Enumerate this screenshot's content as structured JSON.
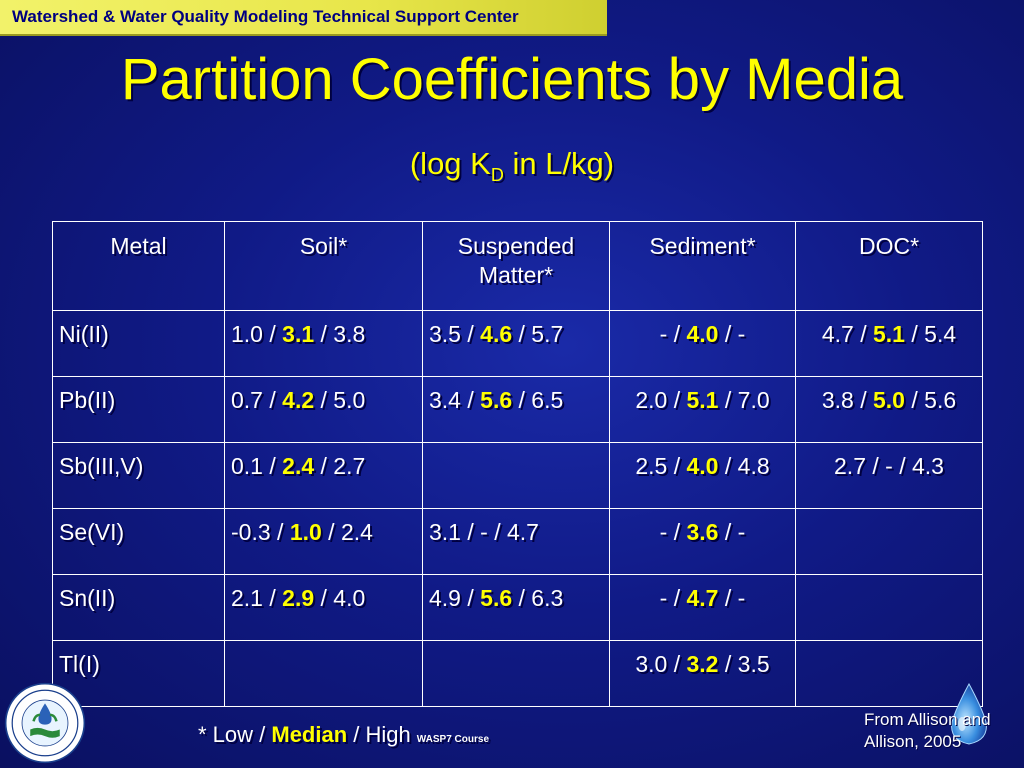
{
  "header": {
    "org": "Watershed & Water Quality Modeling Technical Support Center"
  },
  "title": "Partition Coefficients by Media",
  "subtitle": {
    "pre": "(log K",
    "sub": "D",
    "post": " in L/kg)"
  },
  "table": {
    "headers": [
      "Metal",
      "Soil*",
      "Suspended Matter*",
      "Sediment*",
      "DOC*"
    ],
    "rows": [
      {
        "metal": "Ni(II)",
        "cells": [
          {
            "pre": "1.0 / ",
            "med": "3.1",
            "post": " / 3.8"
          },
          {
            "pre": "3.5 / ",
            "med": "4.6",
            "post": " / 5.7"
          },
          {
            "pre": "- / ",
            "med": "4.0",
            "post": " / -"
          },
          {
            "pre": "4.7 / ",
            "med": "5.1",
            "post": " / 5.4"
          }
        ]
      },
      {
        "metal": "Pb(II)",
        "cells": [
          {
            "pre": "0.7 / ",
            "med": "4.2",
            "post": " / 5.0"
          },
          {
            "pre": "3.4 / ",
            "med": "5.6",
            "post": " / 6.5"
          },
          {
            "pre": "2.0 / ",
            "med": "5.1",
            "post": " / 7.0"
          },
          {
            "pre": "3.8 / ",
            "med": "5.0",
            "post": " / 5.6"
          }
        ]
      },
      {
        "metal": "Sb(III,V)",
        "cells": [
          {
            "pre": "0.1 / ",
            "med": "2.4",
            "post": " / 2.7"
          },
          {
            "pre": "",
            "med": "",
            "post": ""
          },
          {
            "pre": "2.5 / ",
            "med": "4.0",
            "post": " / 4.8"
          },
          {
            "pre": "2.7 / - / 4.3",
            "med": "",
            "post": ""
          }
        ]
      },
      {
        "metal": "Se(VI)",
        "cells": [
          {
            "pre": "-0.3 / ",
            "med": "1.0",
            "post": " / 2.4"
          },
          {
            "pre": "3.1 / - / 4.7",
            "med": "",
            "post": ""
          },
          {
            "pre": "- / ",
            "med": "3.6",
            "post": " / -"
          },
          {
            "pre": "",
            "med": "",
            "post": ""
          }
        ]
      },
      {
        "metal": "Sn(II)",
        "cells": [
          {
            "pre": "2.1 / ",
            "med": "2.9",
            "post": " / 4.0"
          },
          {
            "pre": "4.9 / ",
            "med": "5.6",
            "post": " / 6.3"
          },
          {
            "pre": "- / ",
            "med": "4.7",
            "post": " / -"
          },
          {
            "pre": "",
            "med": "",
            "post": ""
          }
        ]
      },
      {
        "metal": "Tl(I)",
        "cells": [
          {
            "pre": "",
            "med": "",
            "post": ""
          },
          {
            "pre": "",
            "med": "",
            "post": ""
          },
          {
            "pre": "3.0 / ",
            "med": "3.2",
            "post": " / 3.5"
          },
          {
            "pre": "",
            "med": "",
            "post": ""
          }
        ]
      }
    ]
  },
  "footnote": {
    "low": "* Low / ",
    "median": "Median",
    "high": " / High",
    "course": "WASP7 Course"
  },
  "source": {
    "line1": "From Allison and",
    "line2": "Allison, 2005"
  },
  "logos": {
    "epa_seal": "epa-seal-icon",
    "seal_text_top": "UNITED STATES",
    "seal_text_bottom": "ENVIRONMENTAL PROTECTION AGENCY",
    "water_drop": "water-drop-icon"
  },
  "colors": {
    "background": "#101a86",
    "title": "#ffff00",
    "header_bar": "#e8e64a",
    "header_text": "#000080",
    "median": "#ffff00"
  }
}
